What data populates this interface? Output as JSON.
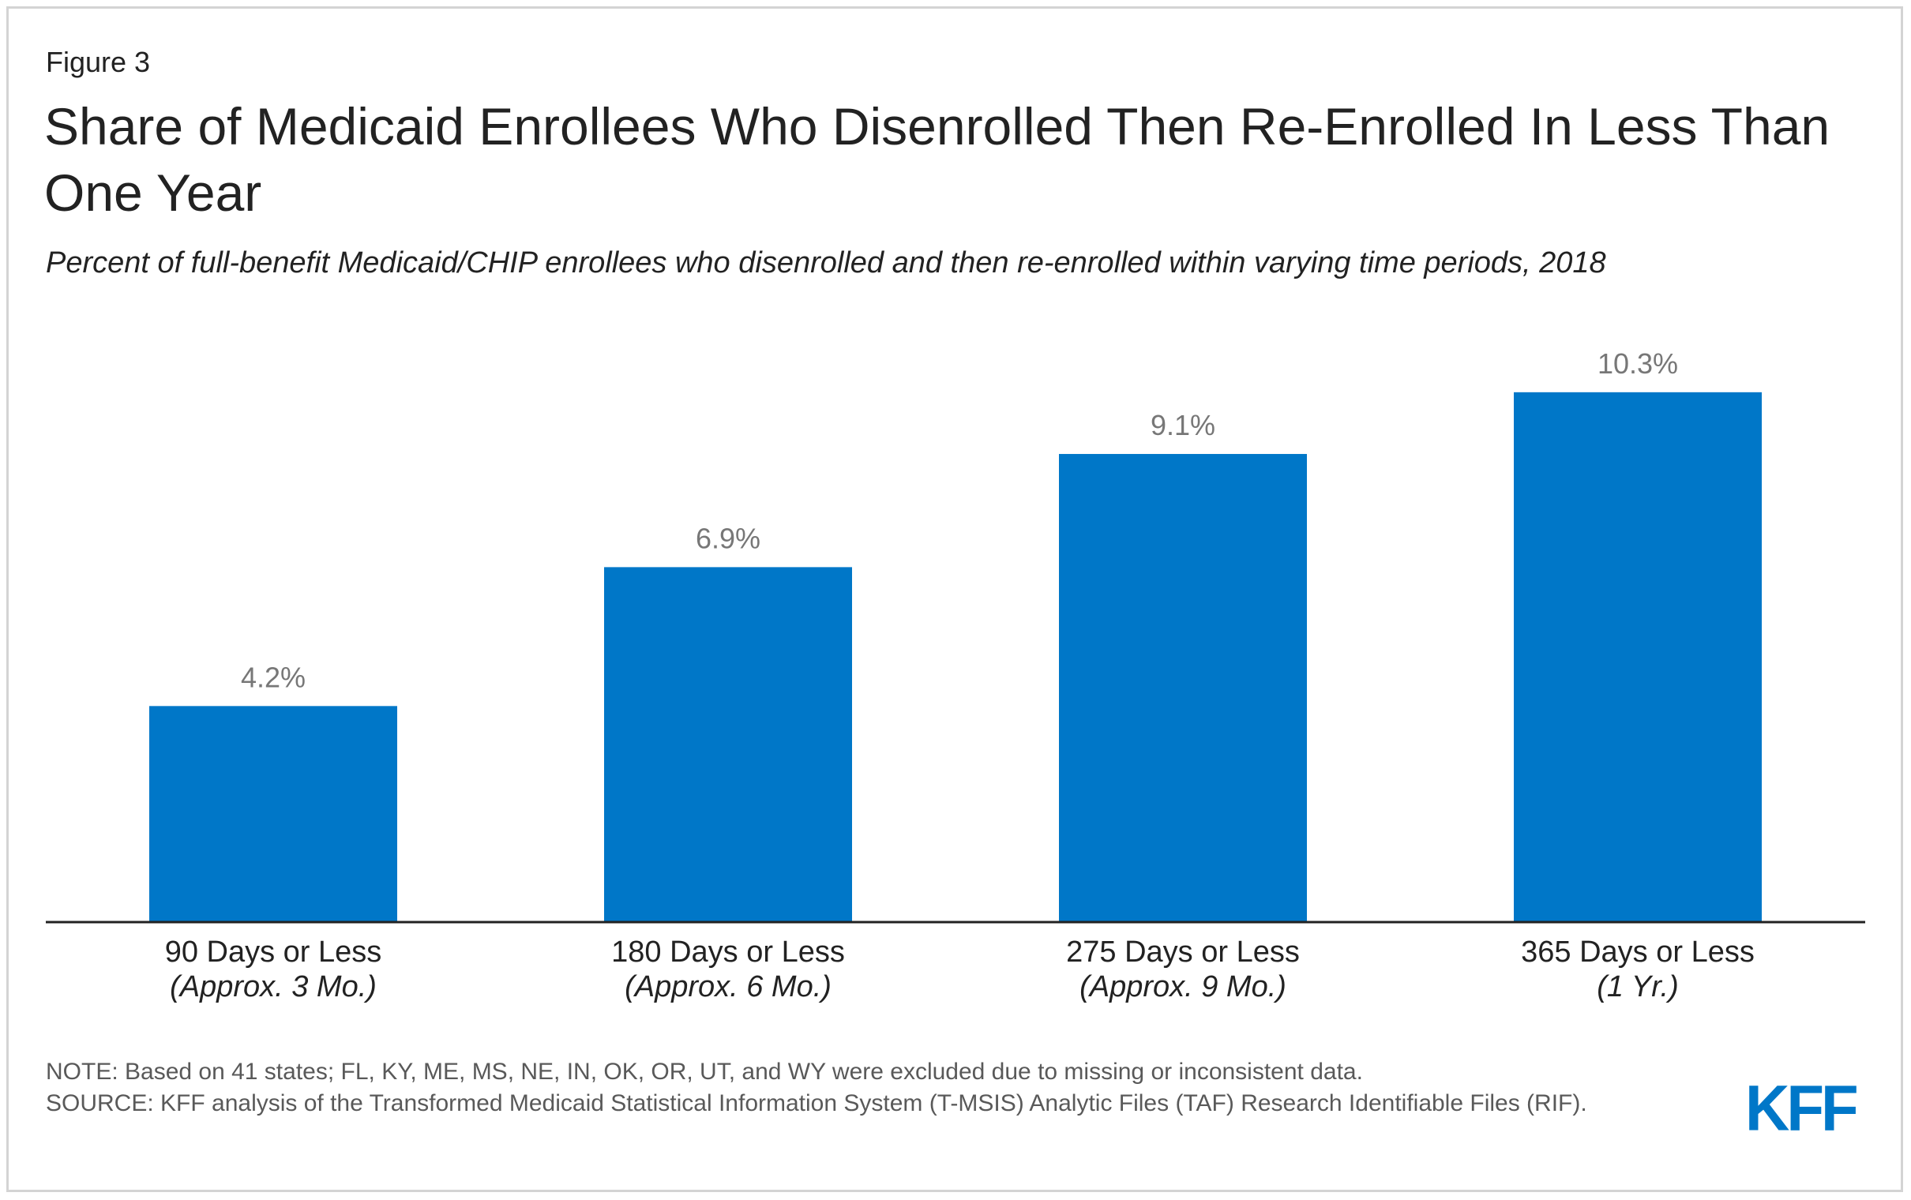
{
  "figure_label": "Figure 3",
  "title": "Share of Medicaid Enrollees Who Disenrolled Then Re-Enrolled In Less Than One Year",
  "subtitle": "Percent of full-benefit Medicaid/CHIP enrollees who disenrolled and then re-enrolled within varying time periods, 2018",
  "note": "NOTE: Based on 41 states; FL, KY, ME, MS, NE, IN, OK, OR, UT, and WY were excluded due to missing or inconsistent data.",
  "source": "SOURCE: KFF analysis of the Transformed Medicaid Statistical Information System (T-MSIS) Analytic Files (TAF) Research Identifiable Files (RIF).",
  "logo_text": "KFF",
  "colors": {
    "bar": "#0077c8",
    "value_label": "#777777",
    "axis": "#222222"
  },
  "chart_data": {
    "type": "bar",
    "categories": [
      "90 Days or Less",
      "180 Days or Less",
      "275 Days or Less",
      "365 Days or Less"
    ],
    "category_sublabels": [
      "(Approx. 3 Mo.)",
      "(Approx. 6 Mo.)",
      "(Approx. 9 Mo.)",
      "(1 Yr.)"
    ],
    "values": [
      4.2,
      6.9,
      9.1,
      10.3
    ],
    "value_labels": [
      "4.2%",
      "6.9%",
      "9.1%",
      "10.3%"
    ],
    "ylim": [
      0,
      12.4
    ],
    "grid": false,
    "legend": "none"
  }
}
